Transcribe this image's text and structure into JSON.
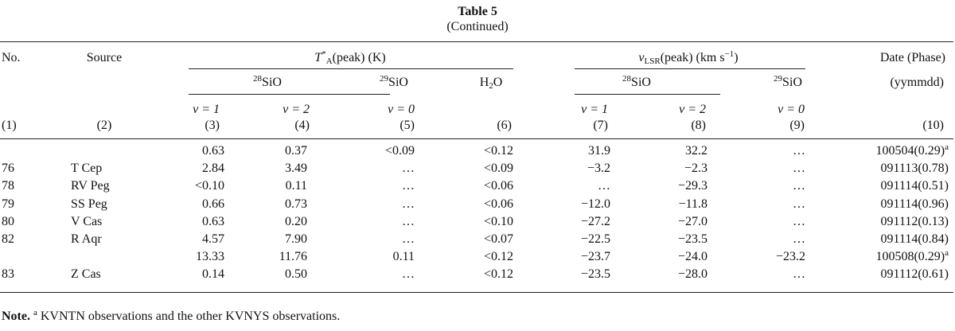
{
  "table": {
    "title": "Table 5",
    "subtitle": "(Continued)",
    "headers": {
      "no": "No.",
      "source": "Source",
      "ta_prefix": "T",
      "ta_sup": "*",
      "ta_sub": "A",
      "ta_suffix": "(peak) (K)",
      "v_prefix": "v",
      "v_sub": "LSR",
      "v_suffix": "(peak) (km s",
      "v_unit_sup": "−1",
      "v_close": ")",
      "date": "Date (Phase)",
      "date_format": "(yymmdd)",
      "iso28_sup": "28",
      "iso29_sup": "29",
      "sio": "SiO",
      "h2o_h": "H",
      "h2o_sub": "2",
      "h2o_o": "O",
      "v1": "v = 1",
      "v2": "v = 2",
      "v0": "v = 0",
      "col_numbers": [
        "(1)",
        "(2)",
        "(3)",
        "(4)",
        "(5)",
        "(6)",
        "(7)",
        "(8)",
        "(9)",
        "(10)"
      ]
    },
    "rows": [
      {
        "no": "",
        "source": "",
        "t28v1": "0.63",
        "t28v2": "0.37",
        "t29v0": "<0.09",
        "h2o": "<0.12",
        "v28v1": "31.9",
        "v28v2": "32.2",
        "v29v0": "…",
        "date": "100504(0.29)",
        "date_sup": "a"
      },
      {
        "no": "76",
        "source": "T Cep",
        "t28v1": "2.84",
        "t28v2": "3.49",
        "t29v0": "…",
        "h2o": "<0.09",
        "v28v1": "−3.2",
        "v28v2": "−2.3",
        "v29v0": "…",
        "date": "091113(0.78)",
        "date_sup": ""
      },
      {
        "no": "78",
        "source": "RV Peg",
        "t28v1": "<0.10",
        "t28v2": "0.11",
        "t29v0": "…",
        "h2o": "<0.06",
        "v28v1": "…",
        "v28v2": "−29.3",
        "v29v0": "…",
        "date": "091114(0.51)",
        "date_sup": ""
      },
      {
        "no": "79",
        "source": "SS Peg",
        "t28v1": "0.66",
        "t28v2": "0.73",
        "t29v0": "…",
        "h2o": "<0.06",
        "v28v1": "−12.0",
        "v28v2": "−11.8",
        "v29v0": "…",
        "date": "091114(0.96)",
        "date_sup": ""
      },
      {
        "no": "80",
        "source": "V Cas",
        "t28v1": "0.63",
        "t28v2": "0.20",
        "t29v0": "…",
        "h2o": "<0.10",
        "v28v1": "−27.2",
        "v28v2": "−27.0",
        "v29v0": "…",
        "date": "091112(0.13)",
        "date_sup": ""
      },
      {
        "no": "82",
        "source": "R Aqr",
        "t28v1": "4.57",
        "t28v2": "7.90",
        "t29v0": "…",
        "h2o": "<0.07",
        "v28v1": "−22.5",
        "v28v2": "−23.5",
        "v29v0": "…",
        "date": "091114(0.84)",
        "date_sup": ""
      },
      {
        "no": "",
        "source": "",
        "t28v1": "13.33",
        "t28v2": "11.76",
        "t29v0": "0.11",
        "h2o": "<0.12",
        "v28v1": "−23.7",
        "v28v2": "−24.0",
        "v29v0": "−23.2",
        "date": "100508(0.29)",
        "date_sup": "a"
      },
      {
        "no": "83",
        "source": "Z Cas",
        "t28v1": "0.14",
        "t28v2": "0.50",
        "t29v0": "…",
        "h2o": "<0.12",
        "v28v1": "−23.5",
        "v28v2": "−28.0",
        "v29v0": "…",
        "date": "091112(0.61)",
        "date_sup": ""
      }
    ]
  },
  "note": {
    "label": "Note.",
    "sup": "a",
    "text": " KVNTN observations and the other KVNYS observations."
  }
}
